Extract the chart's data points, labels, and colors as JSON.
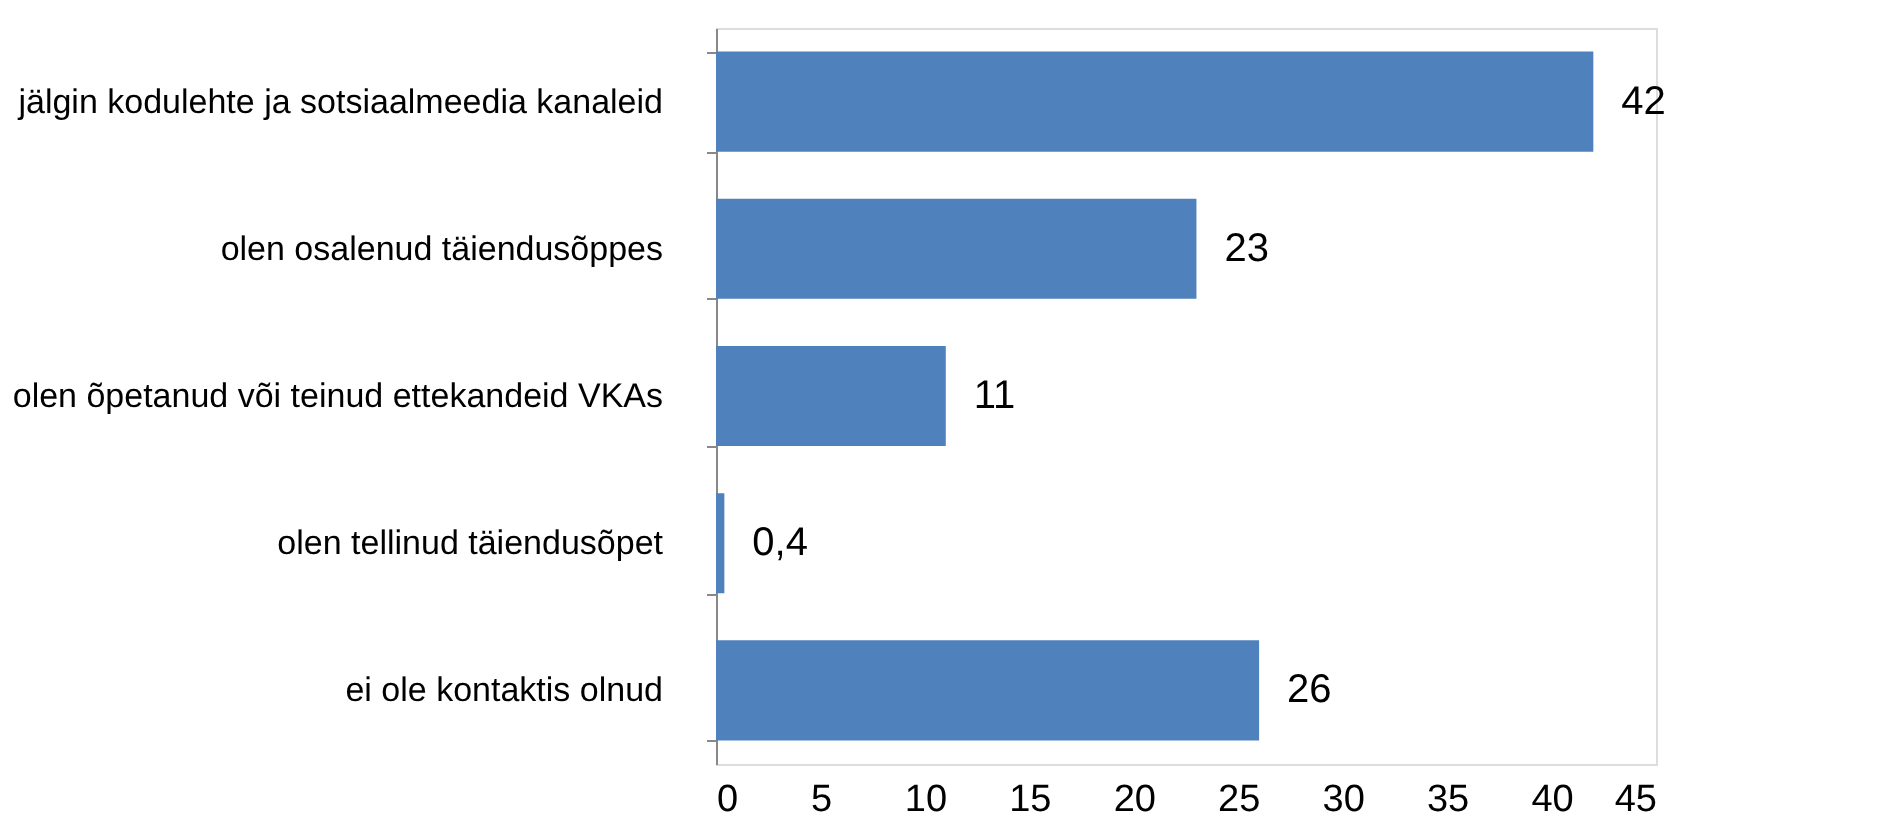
{
  "chart_data": {
    "type": "bar",
    "orientation": "horizontal",
    "categories": [
      "jälgin kodulehte ja sotsiaalmeedia kanaleid",
      "olen osalenud täiendusõppes",
      "olen õpetanud või teinud ettekandeid VKAs",
      "olen tellinud täiendusõpet",
      "ei ole kontaktis olnud"
    ],
    "values": [
      42,
      23,
      11,
      0.4,
      26
    ],
    "value_labels": [
      "42",
      "23",
      "11",
      "0,4",
      "26"
    ],
    "color": "#4f81bd",
    "xlim": [
      0,
      45
    ],
    "xticks": [
      0,
      5,
      10,
      15,
      20,
      25,
      30,
      35,
      40,
      45
    ],
    "grid": false
  }
}
